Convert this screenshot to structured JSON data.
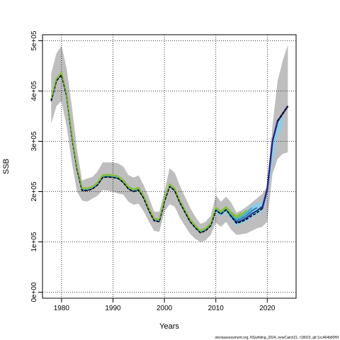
{
  "chart_data": {
    "type": "line",
    "title": "",
    "xlabel": "Years",
    "ylabel": "SSB",
    "xlim": [
      1976.3,
      2025.6
    ],
    "ylim": [
      -12000,
      512000
    ],
    "xticks": [
      1980,
      1990,
      2000,
      2010,
      2020
    ],
    "yticks": [
      0,
      100000,
      200000,
      300000,
      400000,
      500000
    ],
    "ytick_labels": [
      "0e+00",
      "1e+05",
      "2e+05",
      "3e+05",
      "4e+05",
      "5e+05"
    ],
    "grid": true,
    "grid_style": "dotted",
    "footer": "stockassessment.org, NSwhiting_2024_newCatch21, r18923, git:1cc464b80f6f",
    "colors": {
      "band_outer": "#bebebe",
      "band_retro": "#87ceeb",
      "main_line": "#000000",
      "retro_1": "#1e2f8c",
      "retro_2": "#2878b4",
      "retro_3": "#3cb0c0",
      "retro_4": "#7ac142",
      "retro_5": "#c2b43c",
      "forecast_line": "#2c1f82"
    },
    "confidence_band": {
      "x": [
        1978,
        1979,
        1980,
        1981,
        1982,
        1983,
        1984,
        1985,
        1986,
        1987,
        1988,
        1989,
        1990,
        1991,
        1992,
        1993,
        1994,
        1995,
        1996,
        1997,
        1998,
        1999,
        2000,
        2001,
        2002,
        2003,
        2004,
        2005,
        2006,
        2007,
        2008,
        2009,
        2010,
        2011,
        2012,
        2013,
        2014,
        2015,
        2016,
        2017,
        2018,
        2019,
        2020,
        2021,
        2022,
        2023,
        2024
      ],
      "upper": [
        435000,
        475000,
        490000,
        445000,
        370000,
        285000,
        222000,
        226000,
        229000,
        240000,
        258000,
        258000,
        258000,
        256000,
        250000,
        233000,
        228000,
        232000,
        212000,
        188000,
        160000,
        160000,
        200000,
        246000,
        238000,
        212000,
        190000,
        168000,
        150000,
        136000,
        140000,
        152000,
        193000,
        180000,
        190000,
        178000,
        158000,
        163000,
        170000,
        178000,
        187000,
        195000,
        210000,
        330000,
        420000,
        460000,
        492000
      ],
      "lower": [
        335000,
        370000,
        380000,
        330000,
        258000,
        200000,
        182000,
        180000,
        186000,
        192000,
        203000,
        202000,
        200000,
        196000,
        194000,
        180000,
        174000,
        176000,
        160000,
        140000,
        122000,
        120000,
        160000,
        175000,
        170000,
        148000,
        132000,
        116000,
        106000,
        100000,
        103000,
        114000,
        138000,
        130000,
        140000,
        124000,
        114000,
        115000,
        117000,
        122000,
        127000,
        130000,
        140000,
        235000,
        265000,
        275000,
        278000
      ]
    },
    "retro_band": {
      "x": [
        2010,
        2011,
        2012,
        2013,
        2014,
        2015,
        2016,
        2017,
        2018,
        2019,
        2020,
        2021,
        2022,
        2023
      ],
      "upper": [
        168000,
        160000,
        166000,
        155000,
        146000,
        152000,
        160000,
        172000,
        178000,
        180000,
        205000,
        300000,
        340000,
        356000
      ],
      "lower": [
        158000,
        150000,
        158000,
        144000,
        132000,
        136000,
        140000,
        148000,
        155000,
        158000,
        190000,
        255000,
        310000,
        330000
      ]
    },
    "series": [
      {
        "name": "",
        "role": "main",
        "x": [
          1978,
          1979,
          1980,
          1981,
          1982,
          1983,
          1984,
          1985,
          1986,
          1987,
          1988,
          1989,
          1990,
          1991,
          1992,
          1993,
          1994,
          1995,
          1996,
          1997,
          1998,
          1999,
          2000,
          2001,
          2002,
          2003,
          2004,
          2005,
          2006,
          2007,
          2008,
          2009,
          2010,
          2011,
          2012,
          2013,
          2014,
          2015,
          2016,
          2017,
          2018,
          2019,
          2020,
          2021,
          2022,
          2023,
          2024
        ],
        "values": [
          380000,
          420000,
          432000,
          390000,
          310000,
          245000,
          202000,
          202000,
          205000,
          213000,
          228000,
          229000,
          228000,
          226000,
          218000,
          205000,
          200000,
          203000,
          186000,
          162000,
          142000,
          140000,
          180000,
          210000,
          202000,
          178000,
          159000,
          140000,
          128000,
          118000,
          122000,
          132000,
          163000,
          155000,
          164000,
          150000,
          137000,
          140000,
          145000,
          152000,
          158000,
          166000,
          205000,
          300000,
          340000,
          355000,
          370000
        ]
      },
      {
        "name": "",
        "role": "retro",
        "x": [
          1978,
          1979,
          1980,
          1981,
          1982,
          1983,
          1984,
          1985,
          1986,
          1987,
          1988,
          1989,
          1990,
          1991,
          1992,
          1993,
          1994,
          1995,
          1996,
          1997,
          1998,
          1999,
          2000,
          2001,
          2002,
          2003,
          2004,
          2005,
          2006,
          2007,
          2008,
          2009,
          2010,
          2011,
          2012,
          2013,
          2014,
          2015,
          2016,
          2017,
          2018,
          2019
        ],
        "values": [
          381000,
          421000,
          433000,
          391000,
          311000,
          246000,
          203000,
          203000,
          206000,
          214000,
          229000,
          230000,
          229000,
          227000,
          219000,
          206000,
          201000,
          204000,
          187000,
          163000,
          143000,
          141000,
          181000,
          211000,
          203000,
          179000,
          160000,
          141000,
          129000,
          119000,
          123000,
          133000,
          164000,
          156000,
          165000,
          151000,
          139000,
          142000,
          148000,
          156000,
          162000,
          170000
        ]
      },
      {
        "name": "",
        "role": "retro",
        "x": [
          1978,
          1979,
          1980,
          1981,
          1982,
          1983,
          1984,
          1985,
          1986,
          1987,
          1988,
          1989,
          1990,
          1991,
          1992,
          1993,
          1994,
          1995,
          1996,
          1997,
          1998,
          1999,
          2000,
          2001,
          2002,
          2003,
          2004,
          2005,
          2006,
          2007,
          2008,
          2009,
          2010,
          2011,
          2012,
          2013,
          2014,
          2015,
          2016,
          2017,
          2018
        ],
        "values": [
          382000,
          422000,
          434000,
          392000,
          312000,
          247000,
          204000,
          204000,
          207000,
          215000,
          230000,
          231000,
          230000,
          228000,
          220000,
          207000,
          202000,
          205000,
          188000,
          164000,
          144000,
          142000,
          182000,
          212000,
          204000,
          180000,
          161000,
          142000,
          130000,
          120000,
          124000,
          134000,
          165000,
          157000,
          166000,
          153000,
          142000,
          146000,
          153000,
          162000,
          168000
        ]
      },
      {
        "name": "",
        "role": "retro",
        "x": [
          1978,
          1979,
          1980,
          1981,
          1982,
          1983,
          1984,
          1985,
          1986,
          1987,
          1988,
          1989,
          1990,
          1991,
          1992,
          1993,
          1994,
          1995,
          1996,
          1997,
          1998,
          1999,
          2000,
          2001,
          2002,
          2003,
          2004,
          2005,
          2006,
          2007,
          2008,
          2009,
          2010,
          2011,
          2012,
          2013,
          2014,
          2015,
          2016,
          2017
        ],
        "values": [
          383000,
          423000,
          435000,
          393000,
          313000,
          248000,
          205000,
          205000,
          208000,
          216000,
          231000,
          232000,
          231000,
          229000,
          221000,
          208000,
          203000,
          206000,
          189000,
          165000,
          145000,
          143000,
          183000,
          213000,
          205000,
          181000,
          162000,
          143000,
          131000,
          121000,
          125000,
          135000,
          166000,
          158000,
          167000,
          155000,
          145000,
          150000,
          158000,
          168000
        ]
      },
      {
        "name": "",
        "role": "retro",
        "x": [
          1978,
          1979,
          1980,
          1981,
          1982,
          1983,
          1984,
          1985,
          1986,
          1987,
          1988,
          1989,
          1990,
          1991,
          1992,
          1993,
          1994,
          1995,
          1996,
          1997,
          1998,
          1999,
          2000,
          2001,
          2002,
          2003,
          2004,
          2005,
          2006,
          2007,
          2008,
          2009,
          2010,
          2011,
          2012,
          2013,
          2014,
          2015,
          2016
        ],
        "values": [
          384000,
          424000,
          436000,
          394000,
          314000,
          249000,
          206000,
          206000,
          209000,
          217000,
          232000,
          233000,
          232000,
          230000,
          222000,
          209000,
          204000,
          207000,
          190000,
          166000,
          146000,
          144000,
          184000,
          214000,
          206000,
          182000,
          163000,
          144000,
          132000,
          122000,
          126000,
          136000,
          168000,
          160000,
          168000,
          157000,
          148000,
          154000,
          163000
        ]
      },
      {
        "name": "",
        "role": "retro",
        "x": [
          1978,
          1979,
          1980,
          1981,
          1982,
          1983,
          1984,
          1985,
          1986,
          1987,
          1988,
          1989,
          1990,
          1991,
          1992,
          1993,
          1994,
          1995,
          1996,
          1997,
          1998,
          1999,
          2000,
          2001,
          2002,
          2003,
          2004,
          2005,
          2006,
          2007,
          2008,
          2009,
          2010,
          2011,
          2012,
          2013,
          2014,
          2015
        ],
        "values": [
          385000,
          425000,
          437000,
          395000,
          315000,
          250000,
          207000,
          207000,
          210000,
          218000,
          233000,
          234000,
          233000,
          231000,
          223000,
          210000,
          205000,
          208000,
          191000,
          167000,
          147000,
          145000,
          185000,
          215000,
          207000,
          183000,
          164000,
          145000,
          133000,
          123000,
          127000,
          137000,
          169000,
          161000,
          170000,
          159000,
          151000,
          158000
        ]
      },
      {
        "name": "",
        "role": "forecast",
        "x": [
          2019,
          2020,
          2021,
          2022,
          2023,
          2024
        ],
        "values": [
          166000,
          205000,
          300000,
          340000,
          355000,
          370000
        ]
      }
    ]
  }
}
